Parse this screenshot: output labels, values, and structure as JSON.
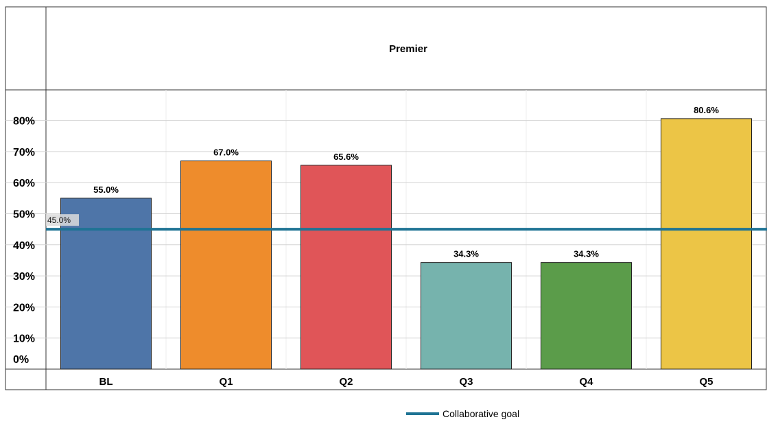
{
  "chart_data": {
    "type": "bar",
    "title": "Premier",
    "xlabel": "",
    "ylabel": "",
    "categories": [
      "BL",
      "Q1",
      "Q2",
      "Q3",
      "Q4",
      "Q5"
    ],
    "values": [
      55.0,
      67.0,
      65.6,
      34.3,
      34.3,
      80.6
    ],
    "data_labels": [
      "55.0%",
      "67.0%",
      "65.6%",
      "34.3%",
      "34.3%",
      "80.6%"
    ],
    "bar_colors": [
      "#4e75a8",
      "#ee8c2c",
      "#e05558",
      "#76b3ad",
      "#5b9c4a",
      "#ecc546"
    ],
    "ylim": [
      0,
      90
    ],
    "yticks": [
      0,
      10,
      20,
      30,
      40,
      50,
      60,
      70,
      80
    ],
    "ytick_labels": [
      "0%",
      "10%",
      "20%",
      "30%",
      "40%",
      "50%",
      "60%",
      "70%",
      "80%"
    ],
    "grid": true,
    "reference_line": {
      "name": "Collaborative goal",
      "value": 45.0,
      "label": "45.0%",
      "color": "#1e7394"
    },
    "legend": {
      "position": "bottom-center",
      "entries": [
        "Collaborative goal"
      ]
    }
  }
}
